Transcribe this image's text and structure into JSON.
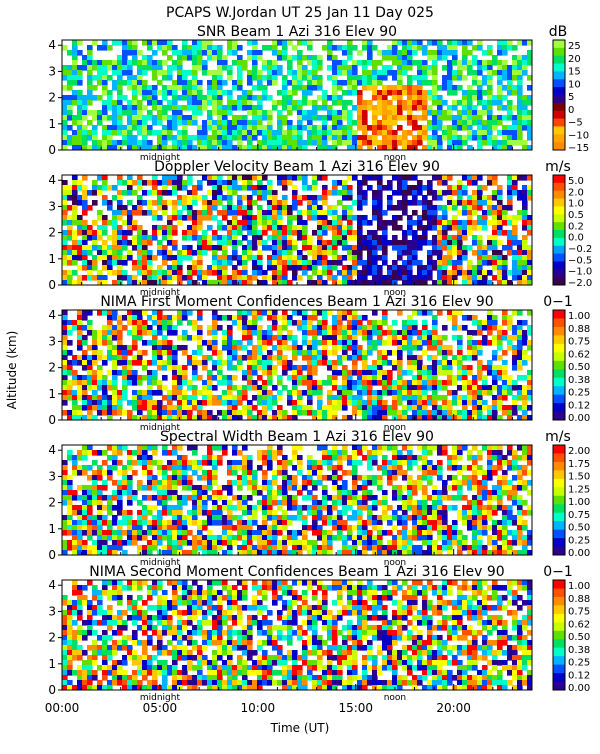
{
  "chart_data": {
    "type": "heatmap",
    "title": "PCAPS W.Jordan UT  25 Jan 11 Day 025",
    "xlabel": "Time (UT)",
    "ylabel": "Altitude (km)",
    "xlim": [
      0,
      24
    ],
    "x_ticks": [
      "00:00",
      "05:00",
      "10:00",
      "15:00",
      "20:00"
    ],
    "x_tick_values": [
      0,
      5,
      10,
      15,
      20
    ],
    "markers": [
      {
        "label": "midnight",
        "x": 5
      },
      {
        "label": "noon",
        "x": 17
      }
    ],
    "panels": [
      {
        "title": "SNR Beam 1 Azi 316 Elev 90",
        "unit": "dB",
        "ylim": [
          0,
          4.2
        ],
        "y_ticks": [
          "0",
          "1",
          "2",
          "3",
          "4"
        ],
        "colorbar_labels": [
          "25",
          "20",
          "15",
          "10",
          "5",
          "0",
          "−5",
          "−10",
          "−15"
        ],
        "colors": [
          "#ff8c00",
          "#ffa500",
          "#ffc800",
          "#ff4500",
          "#d00000",
          "#7a0000",
          "#2a0090",
          "#0000c8",
          "#0050ff",
          "#00b4ff",
          "#00ffc8",
          "#00e060",
          "#60e000",
          "#a0ff40"
        ]
      },
      {
        "title": "Doppler Velocity Beam 1 Azi 316 Elev 90",
        "unit": "m/s",
        "ylim": [
          0,
          4.2
        ],
        "y_ticks": [
          "0",
          "1",
          "2",
          "3",
          "4"
        ],
        "colorbar_labels": [
          "5.0",
          "2.0",
          "1.0",
          "0.5",
          "0.2",
          "0.0",
          "−0.2",
          "−0.5",
          "−1.0",
          "−2.0"
        ],
        "colors": [
          "#3a0050",
          "#2a0090",
          "#0000c8",
          "#0050ff",
          "#00a0ff",
          "#00ffc8",
          "#00e060",
          "#60e000",
          "#c8ff00",
          "#ffff00",
          "#ffc800",
          "#ff8c00",
          "#ff5000",
          "#ff0000"
        ]
      },
      {
        "title": "NIMA First Moment Confidences Beam 1 Azi 316 Elev 90",
        "unit": "0−1",
        "ylim": [
          0,
          4.2
        ],
        "y_ticks": [
          "0",
          "1",
          "2",
          "3",
          "4"
        ],
        "colorbar_labels": [
          "1.00",
          "0.88",
          "0.75",
          "0.62",
          "0.50",
          "0.38",
          "0.25",
          "0.12",
          "0.00"
        ],
        "colors": [
          "#2a0090",
          "#0000c8",
          "#0050ff",
          "#00b4ff",
          "#00ffc8",
          "#00e060",
          "#60e000",
          "#c8ff00",
          "#ffff00",
          "#ffc800",
          "#ff8c00",
          "#ff5000",
          "#ff0000"
        ]
      },
      {
        "title": "Spectral Width Beam 1 Azi 316 Elev 90",
        "unit": "m/s",
        "ylim": [
          0,
          4.2
        ],
        "y_ticks": [
          "0",
          "1",
          "2",
          "3",
          "4"
        ],
        "colorbar_labels": [
          "2.00",
          "1.75",
          "1.50",
          "1.25",
          "1.00",
          "0.75",
          "0.50",
          "0.25",
          "0.00"
        ],
        "colors": [
          "#2a0090",
          "#0000c8",
          "#0050ff",
          "#00b4ff",
          "#00ffc8",
          "#00e060",
          "#60e000",
          "#c8ff00",
          "#ffff00",
          "#ffc800",
          "#ff8c00",
          "#ff5000",
          "#ff0000"
        ]
      },
      {
        "title": "NIMA Second Moment Confidences Beam 1 Azi 316 Elev 90",
        "unit": "0−1",
        "ylim": [
          0,
          4.2
        ],
        "y_ticks": [
          "0",
          "1",
          "2",
          "3",
          "4"
        ],
        "colorbar_labels": [
          "1.00",
          "0.88",
          "0.75",
          "0.62",
          "0.50",
          "0.38",
          "0.25",
          "0.12",
          "0.00"
        ],
        "colors": [
          "#2a0090",
          "#0000c8",
          "#0050ff",
          "#00b4ff",
          "#00ffc8",
          "#00e060",
          "#60e000",
          "#c8ff00",
          "#ffff00",
          "#ffc800",
          "#ff8c00",
          "#ff5000",
          "#ff0000"
        ]
      }
    ]
  }
}
